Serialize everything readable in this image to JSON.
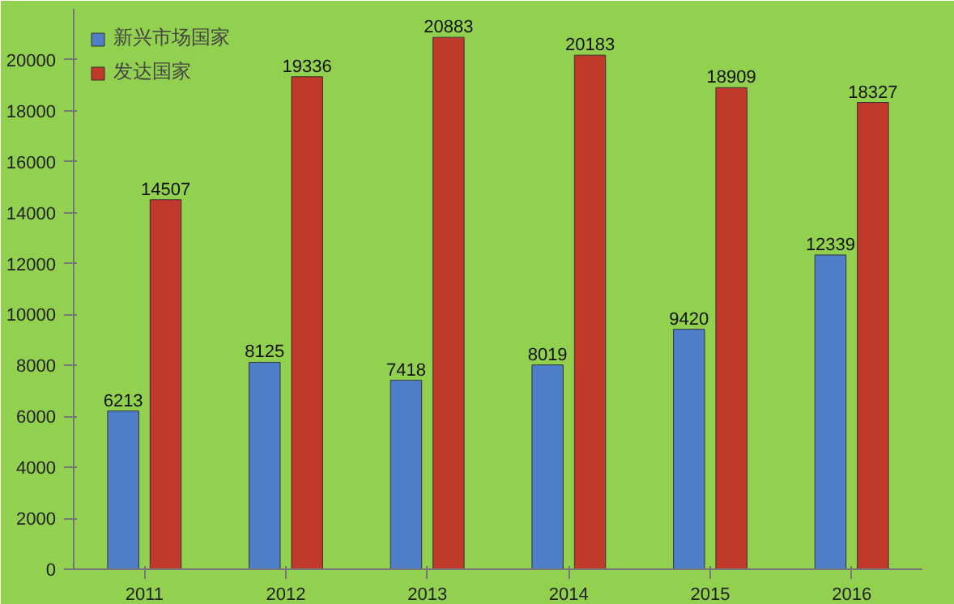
{
  "chart_data": {
    "type": "bar",
    "categories": [
      "2011",
      "2012",
      "2013",
      "2014",
      "2015",
      "2016"
    ],
    "series": [
      {
        "name": "新兴市场国家",
        "color": "#4f7fc8",
        "values": [
          6213,
          8125,
          7418,
          8019,
          9420,
          12339
        ]
      },
      {
        "name": "发达国家",
        "color": "#c0392b",
        "values": [
          14507,
          19336,
          20883,
          20183,
          18909,
          18327
        ]
      }
    ],
    "ylim": [
      0,
      22000
    ],
    "yticks": [
      0,
      2000,
      4000,
      6000,
      8000,
      10000,
      12000,
      14000,
      16000,
      18000,
      20000
    ],
    "grid": false,
    "legend": "top left",
    "data_labels": true
  }
}
